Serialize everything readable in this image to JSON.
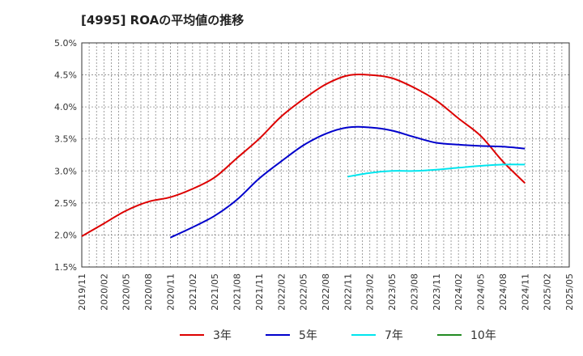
{
  "chart_data": {
    "type": "line",
    "title": "[4995]  ROAの平均値の推移",
    "xlabel": "",
    "ylabel": "",
    "ylim": [
      1.5,
      5.0
    ],
    "grid": true,
    "legend_placement": "bottom",
    "y_ticks": [
      "1.5%",
      "2.0%",
      "2.5%",
      "3.0%",
      "3.5%",
      "4.0%",
      "4.5%",
      "5.0%"
    ],
    "x_ticks": [
      "2019/11",
      "2020/02",
      "2020/05",
      "2020/08",
      "2020/11",
      "2021/02",
      "2021/05",
      "2021/08",
      "2021/11",
      "2022/02",
      "2022/05",
      "2022/08",
      "2022/11",
      "2023/02",
      "2023/05",
      "2023/08",
      "2023/11",
      "2024/02",
      "2024/05",
      "2024/08",
      "2024/11",
      "2025/02",
      "2025/05"
    ],
    "series": [
      {
        "name": "3年",
        "color": "#dd0000",
        "points": [
          [
            "2019/11",
            1.98
          ],
          [
            "2020/02",
            2.18
          ],
          [
            "2020/05",
            2.38
          ],
          [
            "2020/08",
            2.52
          ],
          [
            "2020/11",
            2.59
          ],
          [
            "2021/02",
            2.72
          ],
          [
            "2021/05",
            2.9
          ],
          [
            "2021/08",
            3.2
          ],
          [
            "2021/11",
            3.5
          ],
          [
            "2022/02",
            3.85
          ],
          [
            "2022/05",
            4.12
          ],
          [
            "2022/08",
            4.35
          ],
          [
            "2022/11",
            4.49
          ],
          [
            "2023/02",
            4.5
          ],
          [
            "2023/05",
            4.45
          ],
          [
            "2023/08",
            4.3
          ],
          [
            "2023/11",
            4.1
          ],
          [
            "2024/02",
            3.82
          ],
          [
            "2024/05",
            3.55
          ],
          [
            "2024/08",
            3.15
          ],
          [
            "2024/11",
            2.81
          ]
        ]
      },
      {
        "name": "5年",
        "color": "#0000cc",
        "points": [
          [
            "2020/11",
            1.96
          ],
          [
            "2021/02",
            2.12
          ],
          [
            "2021/05",
            2.3
          ],
          [
            "2021/08",
            2.55
          ],
          [
            "2021/11",
            2.88
          ],
          [
            "2022/02",
            3.15
          ],
          [
            "2022/05",
            3.4
          ],
          [
            "2022/08",
            3.58
          ],
          [
            "2022/11",
            3.68
          ],
          [
            "2023/02",
            3.68
          ],
          [
            "2023/05",
            3.63
          ],
          [
            "2023/08",
            3.53
          ],
          [
            "2023/11",
            3.44
          ],
          [
            "2024/02",
            3.41
          ],
          [
            "2024/05",
            3.39
          ],
          [
            "2024/08",
            3.38
          ],
          [
            "2024/11",
            3.35
          ]
        ]
      },
      {
        "name": "7年",
        "color": "#00e5ee",
        "points": [
          [
            "2022/11",
            2.91
          ],
          [
            "2023/02",
            2.97
          ],
          [
            "2023/05",
            3.0
          ],
          [
            "2023/08",
            3.0
          ],
          [
            "2023/11",
            3.02
          ],
          [
            "2024/02",
            3.05
          ],
          [
            "2024/05",
            3.08
          ],
          [
            "2024/08",
            3.1
          ],
          [
            "2024/11",
            3.1
          ]
        ]
      },
      {
        "name": "10年",
        "color": "#228b22",
        "points": []
      }
    ]
  }
}
